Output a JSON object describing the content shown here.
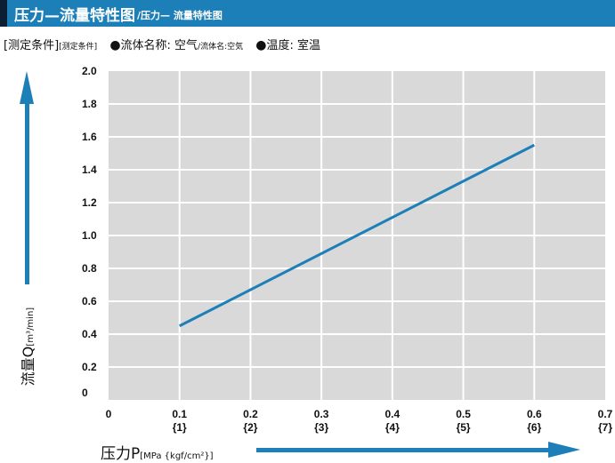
{
  "header": {
    "title": "压力—流量特性图",
    "subtitle": "/压力— 流量特性图"
  },
  "conditions": {
    "label": "[测定条件]",
    "label_small": "[测定条件]",
    "fluid": "流体名称: 空气",
    "fluid_small": "/流体名:空気",
    "temp": "温度: 室温"
  },
  "colors": {
    "accent": "#1d7fb8",
    "plot_bg": "#d9d9d9",
    "line": "#1d7fb8"
  },
  "chart_data": {
    "type": "line",
    "x": [
      0.1,
      0.6
    ],
    "series": [
      {
        "values": [
          0.45,
          1.55
        ]
      }
    ],
    "xlim": [
      0,
      0.7
    ],
    "ylim": [
      0,
      2.0
    ],
    "x_ticks": [
      "0",
      "0.1",
      "0.2",
      "0.3",
      "0.4",
      "0.5",
      "0.6",
      "0.7"
    ],
    "x_ticks_secondary": [
      "",
      "{1}",
      "{2}",
      "{3}",
      "{4}",
      "{5}",
      "{6}",
      "{7}"
    ],
    "y_ticks": [
      "0",
      "0.2",
      "0.4",
      "0.6",
      "0.8",
      "1.0",
      "1.2",
      "1.4",
      "1.6",
      "1.8",
      "2.0"
    ],
    "xlabel": "压力P",
    "xlabel_unit": "[MPa {kgf/cm²}]",
    "ylabel": "流量Q",
    "ylabel_unit": "[m³/min]",
    "grid": true
  }
}
